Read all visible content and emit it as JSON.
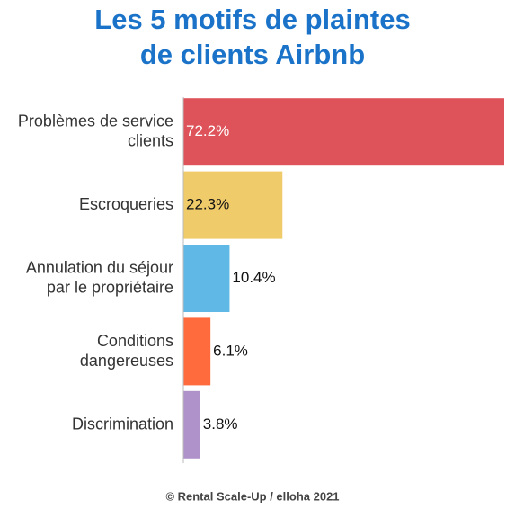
{
  "chart_data": {
    "type": "hbar",
    "title": [
      "Les 5 motifs de plaintes",
      "de clients Airbnb"
    ],
    "categories": [
      "Problèmes de service\nclients",
      "Escroqueries",
      "Annulation du séjour\npar le propriétaire",
      "Conditions\ndangereuses",
      "Discrimination"
    ],
    "values": [
      72.2,
      22.3,
      10.4,
      6.1,
      3.8
    ],
    "value_labels": [
      "72.2%",
      "22.3%",
      "10.4%",
      "6.1%",
      "3.8%"
    ],
    "colors": [
      "#de5259",
      "#f0cb6a",
      "#5fb8e6",
      "#ff6b3d",
      "#ae92c9"
    ],
    "source": "© Rental Scale-Up / elloha 2021"
  }
}
